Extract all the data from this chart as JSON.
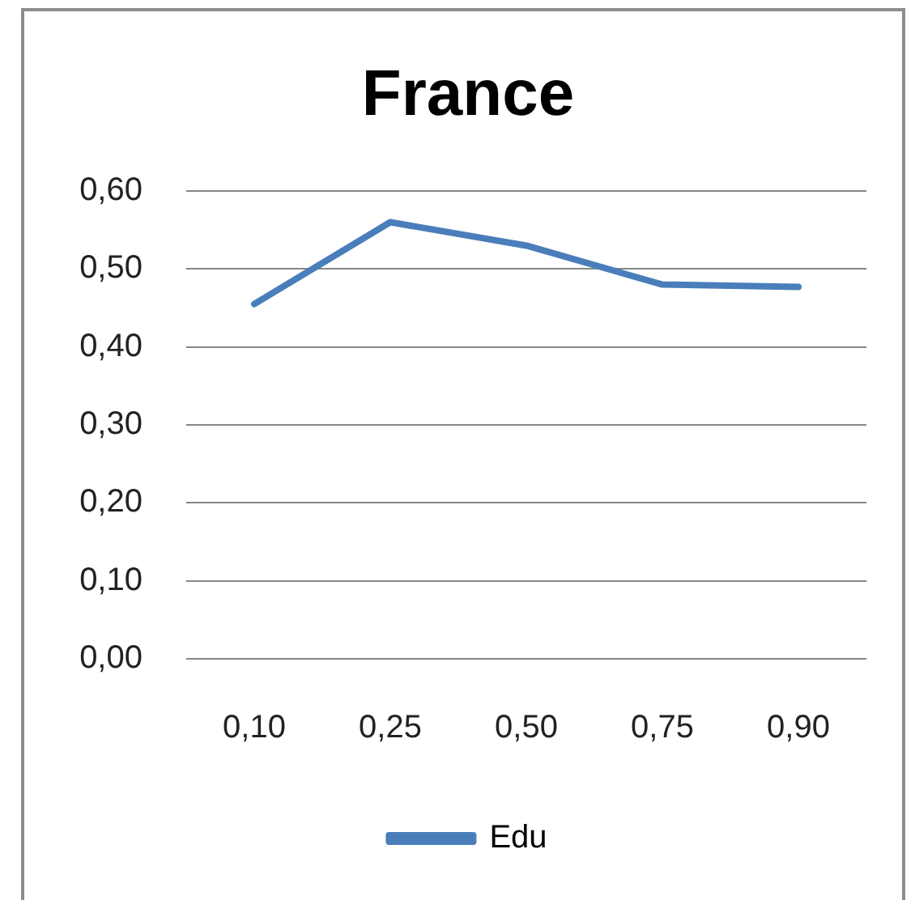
{
  "chart_data": {
    "type": "line",
    "title": "France",
    "categories": [
      "0,10",
      "0,25",
      "0,50",
      "0,75",
      "0,90"
    ],
    "series": [
      {
        "name": "Edu",
        "color": "#4a7ebb",
        "values": [
          0.455,
          0.56,
          0.53,
          0.48,
          0.477
        ]
      }
    ],
    "ylim": [
      0,
      0.6
    ],
    "yticks": [
      {
        "value": 0,
        "label": "0,00"
      },
      {
        "value": 0.1,
        "label": "0,10"
      },
      {
        "value": 0.2,
        "label": "0,20"
      },
      {
        "value": 0.3,
        "label": "0,30"
      },
      {
        "value": 0.4,
        "label": "0,40"
      },
      {
        "value": 0.5,
        "label": "0,50"
      },
      {
        "value": 0.6,
        "label": "0,60"
      }
    ],
    "grid": "y",
    "legend": "bottom",
    "marker": "none",
    "line_style": "solid"
  }
}
